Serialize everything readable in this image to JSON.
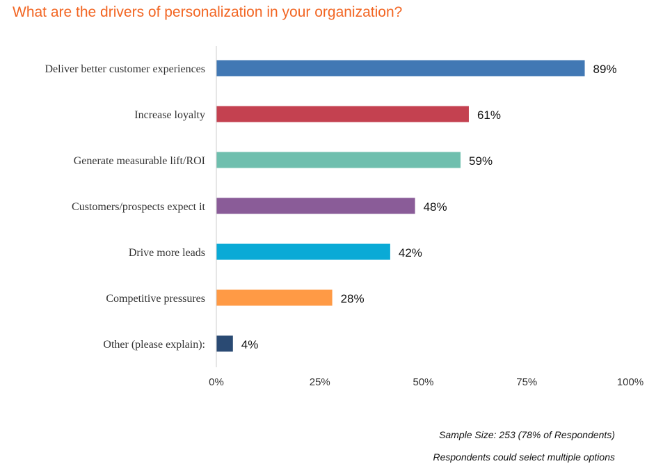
{
  "chart_data": {
    "type": "bar",
    "orientation": "horizontal",
    "title": "What are the drivers of personalization in your organization?",
    "categories": [
      "Deliver better customer experiences",
      "Increase loyalty",
      "Generate measurable lift/ROI",
      "Customers/prospects expect it",
      "Drive more leads",
      "Competitive pressures",
      "Other (please explain):"
    ],
    "values": [
      89,
      61,
      59,
      48,
      42,
      28,
      4
    ],
    "value_labels": [
      "89%",
      "61%",
      "59%",
      "48%",
      "42%",
      "28%",
      "4%"
    ],
    "colors": [
      "#4178B4",
      "#C44150",
      "#6FBFAE",
      "#8A5C98",
      "#0AAAD6",
      "#FF9A45",
      "#2A4A73"
    ],
    "xlim": [
      0,
      100
    ],
    "x_ticks": [
      "0%",
      "25%",
      "50%",
      "75%",
      "100%"
    ],
    "xlabel": "",
    "ylabel": "",
    "grid": false,
    "title_color": "#F26522"
  },
  "notes": {
    "sample_size": "Sample Size: 253 (78% of Respondents)",
    "multiple": "Respondents could select multiple options"
  }
}
